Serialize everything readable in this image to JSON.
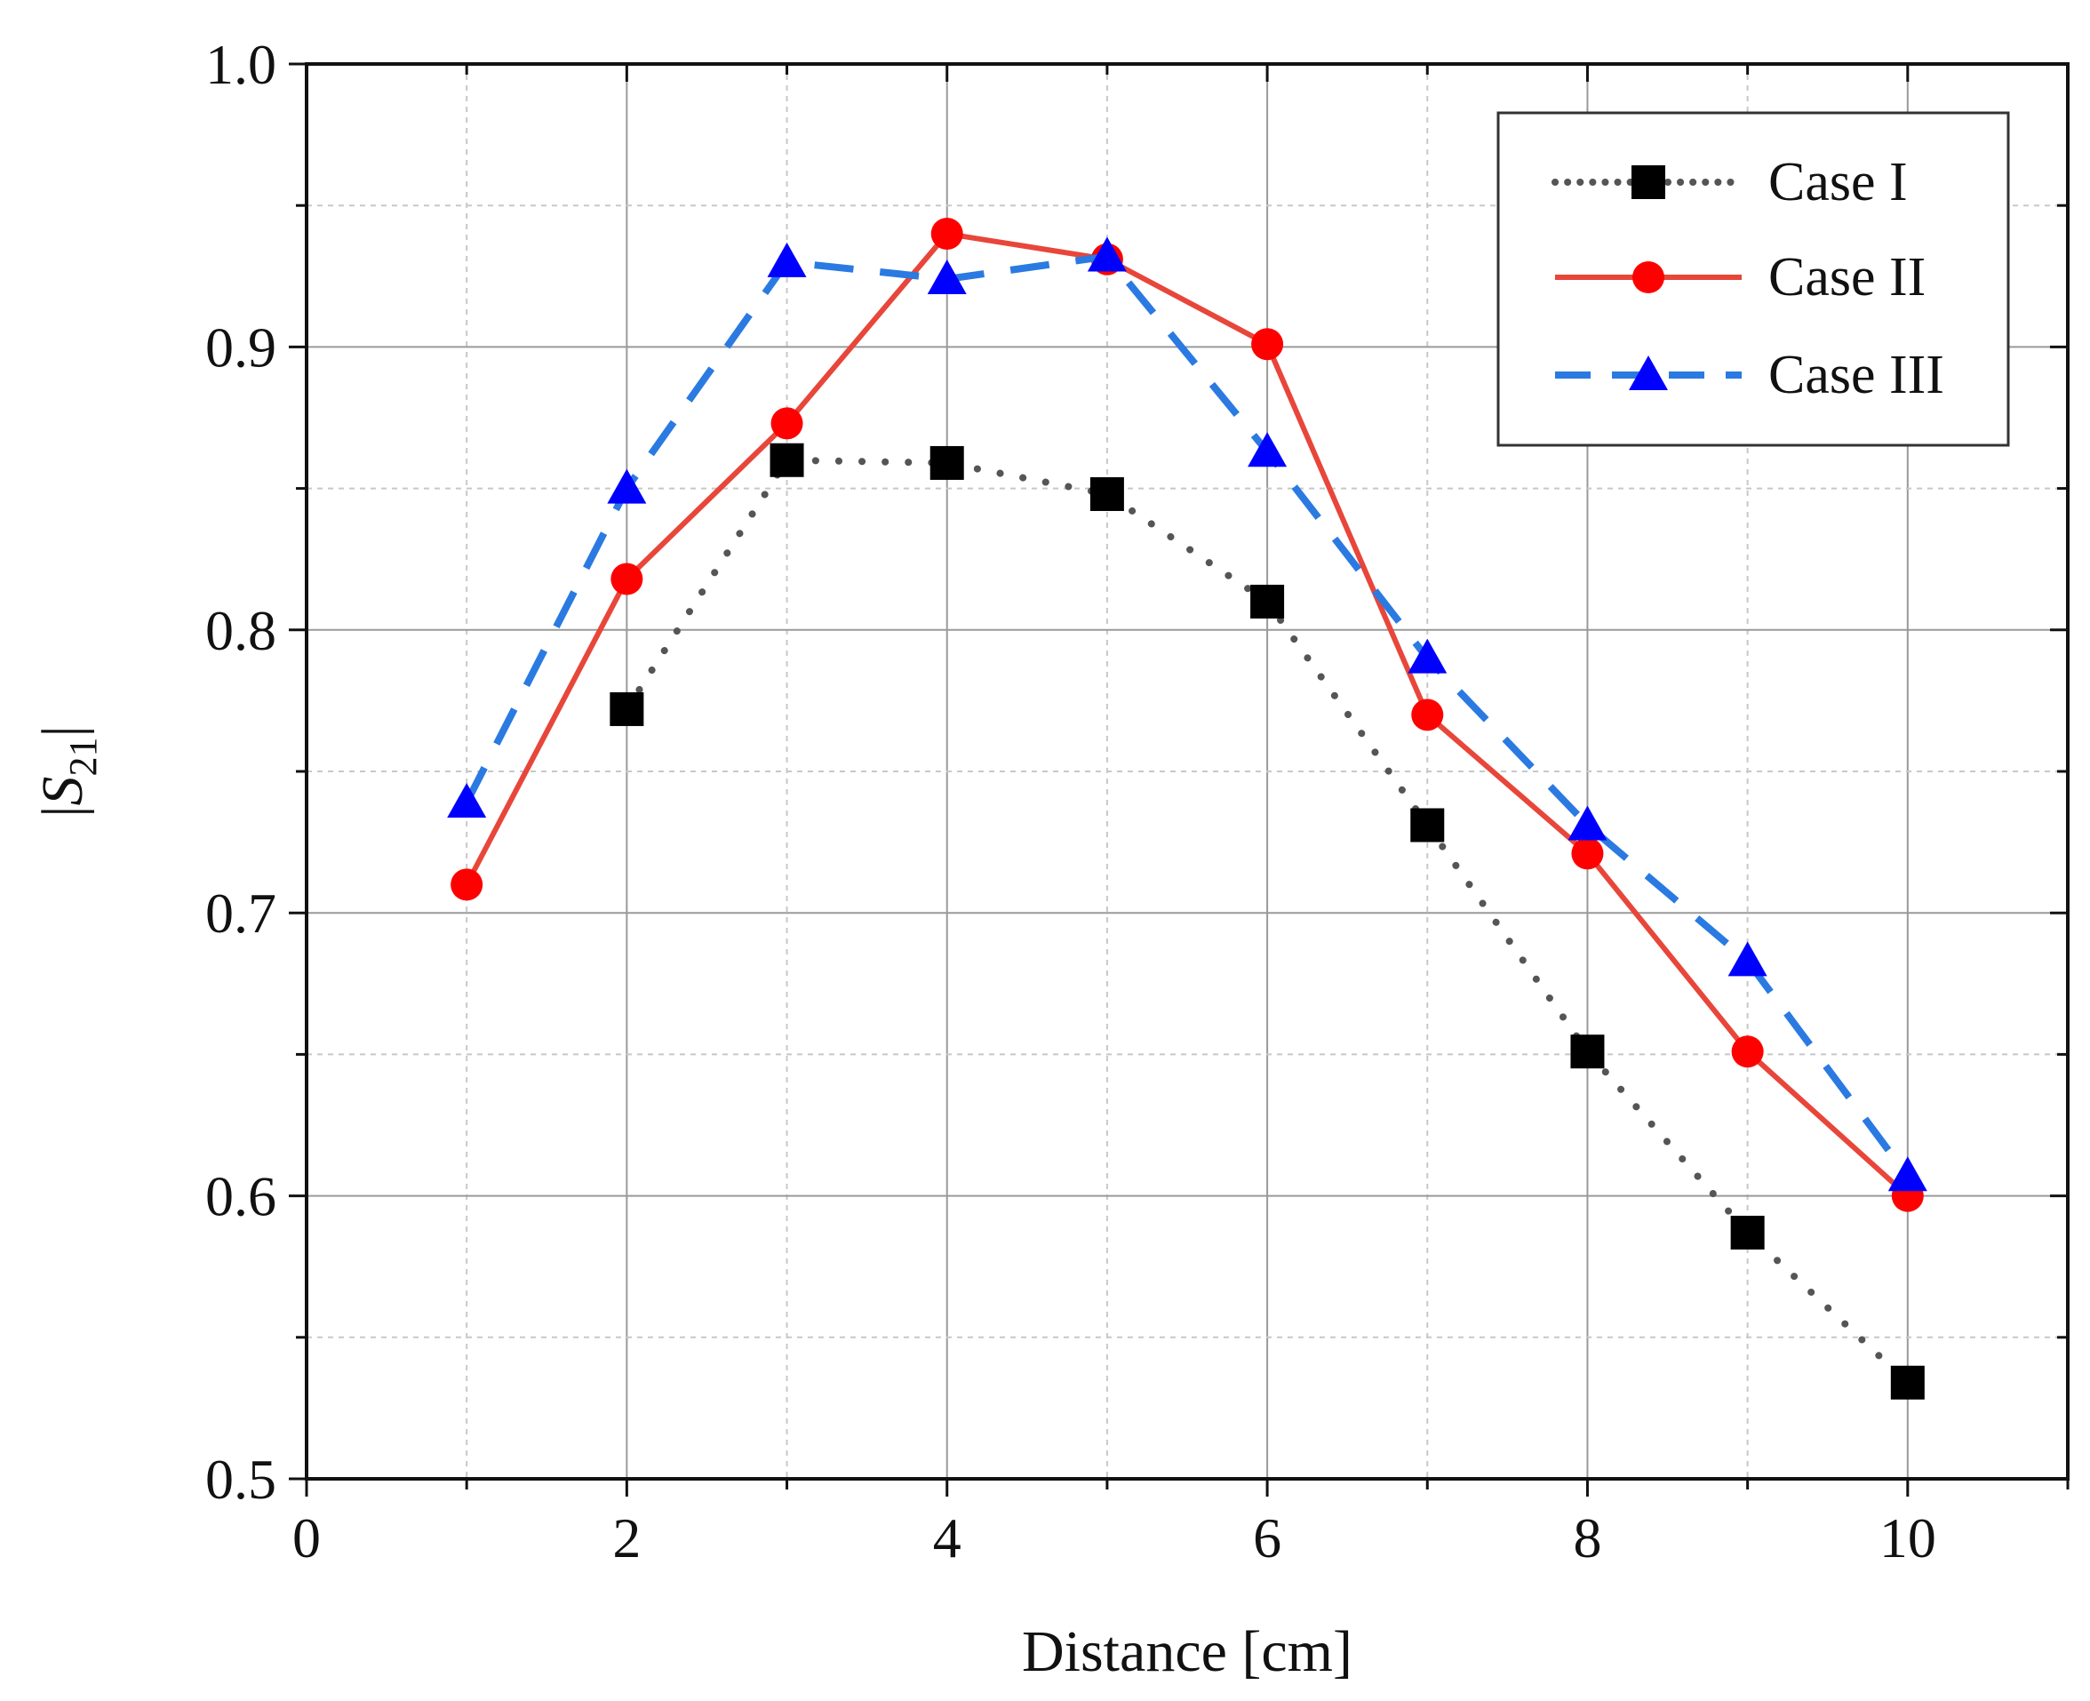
{
  "chart_data": {
    "type": "line",
    "title": "",
    "xlabel": "Distance [cm]",
    "ylabel": {
      "prefix": "|",
      "main": "S",
      "sub": "21",
      "suffix": "|"
    },
    "xlim": [
      0,
      11
    ],
    "ylim": [
      0.5,
      1.0
    ],
    "x_ticks": [
      0,
      2,
      4,
      6,
      8,
      10
    ],
    "x_tick_labels": [
      "0",
      "2",
      "4",
      "6",
      "8",
      "10"
    ],
    "x_minor_ticks": [
      1,
      3,
      5,
      7,
      9,
      11
    ],
    "y_ticks": [
      0.5,
      0.6,
      0.7,
      0.8,
      0.9,
      1.0
    ],
    "y_tick_labels": [
      "0.5",
      "0.6",
      "0.7",
      "0.8",
      "0.9",
      "1.0"
    ],
    "y_minor_ticks": [
      0.55,
      0.65,
      0.75,
      0.85,
      0.95
    ],
    "grid": true,
    "legend_position": "top-right",
    "x": [
      1,
      2,
      3,
      4,
      5,
      6,
      7,
      8,
      9,
      10
    ],
    "series": [
      {
        "name": "Case I",
        "values": [
          null,
          0.772,
          0.86,
          0.859,
          0.848,
          0.81,
          0.731,
          0.651,
          0.587,
          0.534
        ],
        "color": "#000000",
        "line_color": "#555555",
        "marker": "square",
        "line_style": "dotted"
      },
      {
        "name": "Case II",
        "values": [
          0.71,
          0.818,
          0.873,
          0.94,
          0.931,
          0.901,
          0.77,
          0.721,
          0.651,
          0.6
        ],
        "color": "#ff0000",
        "line_color": "#e8463a",
        "marker": "circle",
        "line_style": "solid"
      },
      {
        "name": "Case III",
        "values": [
          0.739,
          0.85,
          0.93,
          0.924,
          0.932,
          0.863,
          0.79,
          0.731,
          0.683,
          0.607
        ],
        "color": "#0000ff",
        "line_color": "#2a7ae2",
        "marker": "triangle",
        "line_style": "dashed"
      }
    ]
  }
}
